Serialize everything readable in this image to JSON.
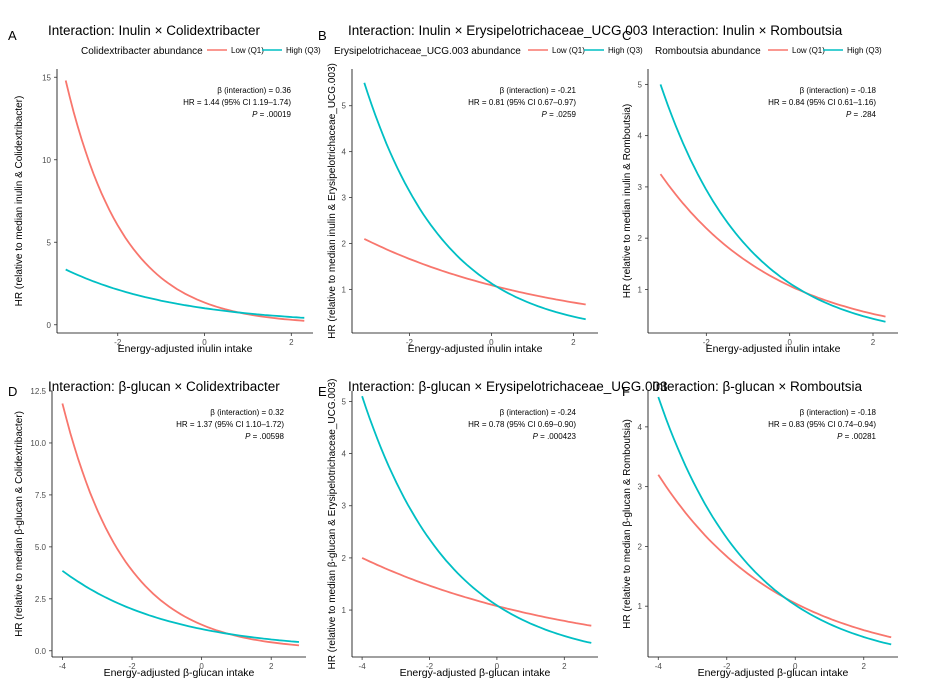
{
  "colors": {
    "low": "#F8766D",
    "high": "#00BFC4",
    "axis": "#000000"
  },
  "legend_items": [
    "Low (Q1)",
    "High (Q3)"
  ],
  "chart_data": [
    {
      "panel": "A",
      "type": "line",
      "title": "Interaction: Inulin × Colidextribacter",
      "legend_title": "Colidextribacter abundance",
      "xlabel": "Energy-adjusted inulin intake",
      "ylabel": "HR (relative to median inulin & Colidextribacter)",
      "xlim": [
        -3.4,
        2.5
      ],
      "ylim": [
        -0.5,
        15.5
      ],
      "xticks": [
        -2,
        0,
        2
      ],
      "xtick_labels": [
        "-2",
        "0",
        "2"
      ],
      "yticks": [
        0,
        5,
        10,
        15
      ],
      "ytick_labels": [
        "0",
        "5",
        "10",
        "15"
      ],
      "series": [
        {
          "name": "Low (Q1)",
          "x": [
            -3.2,
            2.3
          ],
          "y": [
            14.8,
            0.24
          ]
        },
        {
          "name": "High (Q3)",
          "x": [
            -3.2,
            2.3
          ],
          "y": [
            3.35,
            0.42
          ]
        }
      ],
      "stats": [
        "β (interaction) = 0.36",
        "HR = 1.44 (95% CI 1.19–1.74)",
        "P = .00019"
      ]
    },
    {
      "panel": "B",
      "type": "line",
      "title": "Interaction: Inulin × Erysipelotrichaceae_UCG.003",
      "legend_title": "Erysipelotrichaceae_UCG.003 abundance",
      "xlabel": "Energy-adjusted inulin intake",
      "ylabel": "HR (relative to median inulin & Erysipelotrichaceae_UCG.003)",
      "xlim": [
        -3.4,
        2.6
      ],
      "ylim": [
        0.05,
        5.8
      ],
      "xticks": [
        -2,
        0,
        2
      ],
      "xtick_labels": [
        "-2",
        "0",
        "2"
      ],
      "yticks": [
        1,
        2,
        3,
        4,
        5
      ],
      "ytick_labels": [
        "1",
        "2",
        "3",
        "4",
        "5"
      ],
      "series": [
        {
          "name": "Low (Q1)",
          "x": [
            -3.1,
            2.3
          ],
          "y": [
            2.1,
            0.67
          ]
        },
        {
          "name": "High (Q3)",
          "x": [
            -3.1,
            2.3
          ],
          "y": [
            5.5,
            0.35
          ]
        }
      ],
      "stats": [
        "β (interaction) = -0.21",
        "HR = 0.81 (95% CI 0.67–0.97)",
        "P = .0259"
      ]
    },
    {
      "panel": "C",
      "type": "line",
      "title": "Interaction: Inulin × Romboutsia",
      "legend_title": "Romboutsia abundance",
      "xlabel": "Energy-adjusted inulin intake",
      "ylabel": "HR (relative to median inulin & Romboutsia)",
      "xlim": [
        -3.4,
        2.6
      ],
      "ylim": [
        0.15,
        5.3
      ],
      "xticks": [
        -2,
        0,
        2
      ],
      "xtick_labels": [
        "-2",
        "0",
        "2"
      ],
      "yticks": [
        1,
        2,
        3,
        4,
        5
      ],
      "ytick_labels": [
        "1",
        "2",
        "3",
        "4",
        "5"
      ],
      "series": [
        {
          "name": "Low (Q1)",
          "x": [
            -3.1,
            2.3
          ],
          "y": [
            3.25,
            0.47
          ]
        },
        {
          "name": "High (Q3)",
          "x": [
            -3.1,
            2.3
          ],
          "y": [
            5.0,
            0.37
          ]
        }
      ],
      "stats": [
        "β (interaction) = -0.18",
        "HR = 0.84 (95% CI 0.61–1.16)",
        "P = .284"
      ]
    },
    {
      "panel": "D",
      "type": "line",
      "title": "Interaction: β-glucan × Colidextribacter",
      "legend_title": "",
      "xlabel": "Energy-adjusted β-glucan intake",
      "ylabel": "HR (relative to median β-glucan & Colidextribacter)",
      "xlim": [
        -4.3,
        3.0
      ],
      "ylim": [
        -0.3,
        12.5
      ],
      "xticks": [
        -4,
        -2,
        0,
        2
      ],
      "xtick_labels": [
        "-4",
        "-2",
        "0",
        "2"
      ],
      "yticks": [
        0,
        2.5,
        5,
        7.5,
        10,
        12.5
      ],
      "ytick_labels": [
        "0.0",
        "2.5",
        "5.0",
        "7.5",
        "10.0",
        "12.5"
      ],
      "series": [
        {
          "name": "Low (Q1)",
          "x": [
            -4.0,
            2.8
          ],
          "y": [
            11.9,
            0.26
          ]
        },
        {
          "name": "High (Q3)",
          "x": [
            -4.0,
            2.8
          ],
          "y": [
            3.85,
            0.42
          ]
        }
      ],
      "stats": [
        "β (interaction) = 0.32",
        "HR = 1.37 (95% CI 1.10–1.72)",
        "P = .00598"
      ]
    },
    {
      "panel": "E",
      "type": "line",
      "title": "Interaction: β-glucan × Erysipelotrichaceae_UCG.003",
      "legend_title": "",
      "xlabel": "Energy-adjusted β-glucan intake",
      "ylabel": "HR (relative to median β-glucan & Erysipelotrichaceae_UCG.003)",
      "xlim": [
        -4.3,
        3.0
      ],
      "ylim": [
        0.1,
        5.2
      ],
      "xticks": [
        -4,
        -2,
        0,
        2
      ],
      "xtick_labels": [
        "-4",
        "-2",
        "0",
        "2"
      ],
      "yticks": [
        1,
        2,
        3,
        4,
        5
      ],
      "ytick_labels": [
        "1",
        "2",
        "3",
        "4",
        "5"
      ],
      "series": [
        {
          "name": "Low (Q1)",
          "x": [
            -4.0,
            2.8
          ],
          "y": [
            2.0,
            0.7
          ]
        },
        {
          "name": "High (Q3)",
          "x": [
            -4.0,
            2.8
          ],
          "y": [
            5.1,
            0.37
          ]
        }
      ],
      "stats": [
        "β (interaction) = -0.24",
        "HR = 0.78 (95% CI 0.69–0.90)",
        "P = .000423"
      ]
    },
    {
      "panel": "F",
      "type": "line",
      "title": "Interaction: β-glucan × Romboutsia",
      "legend_title": "",
      "xlabel": "Energy-adjusted β-glucan intake",
      "ylabel": "HR (relative to median β-glucan & Romboutsia)",
      "xlim": [
        -4.3,
        3.0
      ],
      "ylim": [
        0.15,
        4.6
      ],
      "xticks": [
        -4,
        -2,
        0,
        2
      ],
      "xtick_labels": [
        "-4",
        "-2",
        "0",
        "2"
      ],
      "yticks": [
        1,
        2,
        3,
        4
      ],
      "ytick_labels": [
        "1",
        "2",
        "3",
        "4"
      ],
      "series": [
        {
          "name": "Low (Q1)",
          "x": [
            -4.0,
            2.8
          ],
          "y": [
            3.2,
            0.48
          ]
        },
        {
          "name": "High (Q3)",
          "x": [
            -4.0,
            2.8
          ],
          "y": [
            4.5,
            0.36
          ]
        }
      ],
      "stats": [
        "β (interaction) = -0.18",
        "HR = 0.83 (95% CI 0.74–0.94)",
        "P = .00281"
      ]
    }
  ]
}
